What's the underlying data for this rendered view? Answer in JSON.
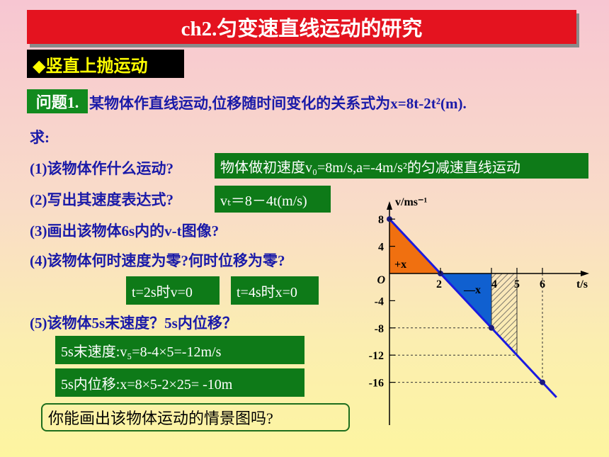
{
  "title": "ch2.匀变速直线运动的研究",
  "section": "◆竖直上抛运动",
  "question_tag": "问题1.",
  "question_text": "某物体作直线运动,位移随时间变化的关系式为x=8t-2t²(m).",
  "ask": "求:",
  "q1": "(1)该物体作什么运动?",
  "a1": "物体做初速度v₀=8m/s,a=-4m/s²的匀减速直线运动",
  "q2": "(2)写出其速度表达式?",
  "a2": "vₜ＝8－4t(m/s)",
  "q3": "(3)画出该物体6s内的v-t图像?",
  "q4": "(4)该物体何时速度为零?何时位移为零?",
  "a4a": "t=2s时v=0",
  "a4b": "t=4s时x=0",
  "q5": "(5)该物体5s末速度？5s内位移？",
  "a5a": "5s末速度:v₅=8-4×5=-12m/s",
  "a5b": "5s内位移:x=8×5-2×25= -10m",
  "prompt": "你能画出该物体运动的情景图吗?",
  "chart_data": {
    "type": "line",
    "xlabel": "t/s",
    "ylabel": "v/ms⁻¹",
    "x_ticks": [
      "2",
      "4",
      "5",
      "6"
    ],
    "y_ticks": [
      "8",
      "4",
      "O",
      "-4",
      "-8",
      "-12",
      "-16"
    ],
    "series": [
      {
        "x": [
          0,
          6
        ],
        "values": [
          8,
          -16
        ]
      }
    ],
    "points": [
      [
        0,
        8
      ],
      [
        2,
        0
      ],
      [
        4,
        -8
      ],
      [
        6,
        -16
      ]
    ],
    "area_labels": [
      "+x",
      "—x"
    ],
    "colors": {
      "line": "#1a1ae0",
      "pos_area": "#f07010",
      "neg_area": "#1060d0",
      "hatch": "#555555"
    }
  }
}
